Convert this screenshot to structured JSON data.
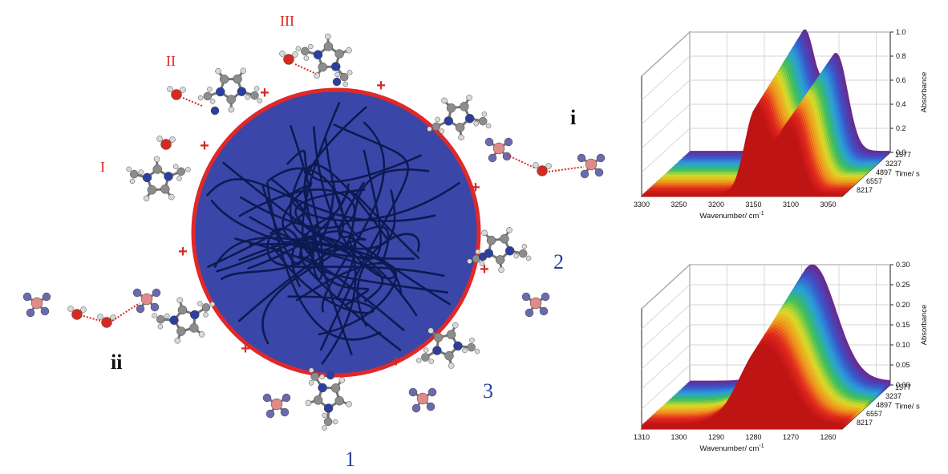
{
  "diagram": {
    "site_labels_red": [
      "I",
      "II",
      "III"
    ],
    "site_labels_black": [
      "i",
      "ii"
    ],
    "site_labels_blue": [
      "1",
      "2",
      "3"
    ],
    "charge_symbol": "+",
    "colors": {
      "sphere_fill": "#3a47a8",
      "sphere_border": "#e0282a",
      "fibers": "#0d1a52",
      "carbon": "#8c8c8c",
      "nitrogen": "#2d3f9e",
      "hydrogen": "#d8d8d8",
      "oxygen": "#d42a22",
      "boron": "#e08a8a",
      "fluorine": "#6a6ab0"
    }
  },
  "chart_data": [
    {
      "type": "area",
      "xlabel": "Wavenumber/ cm",
      "xlabel_superscript": "-1",
      "ylabel": "Absorbance",
      "zlabel": "Time/ s",
      "x_ticks": [
        "3300",
        "3250",
        "3200",
        "3150",
        "3100",
        "3050"
      ],
      "y_ticks": [
        "0.0",
        "0.2",
        "0.4",
        "0.6",
        "0.8",
        "1.0"
      ],
      "z_ticks": [
        "1577",
        "3237",
        "4897",
        "6557",
        "8217"
      ],
      "xlim": [
        3300,
        3020
      ],
      "ylim": [
        0,
        1.0
      ],
      "peaks": [
        {
          "center": 3140,
          "width": 22,
          "height_front": 0.72,
          "height_back": 1.0
        },
        {
          "center": 3095,
          "width": 22,
          "height_front": 0.58,
          "height_back": 0.8
        }
      ]
    },
    {
      "type": "area",
      "xlabel": "Wavenumber/ cm",
      "xlabel_superscript": "-1",
      "ylabel": "Absorbance",
      "zlabel": "Time/ s",
      "x_ticks": [
        "1310",
        "1300",
        "1290",
        "1280",
        "1270",
        "1260"
      ],
      "y_ticks": [
        "0.00",
        "0.05",
        "0.10",
        "0.15",
        "0.20",
        "0.25",
        "0.30"
      ],
      "z_ticks": [
        "1577",
        "3237",
        "4897",
        "6557",
        "8217"
      ],
      "xlim": [
        1310,
        1256
      ],
      "ylim": [
        0,
        0.3
      ],
      "peaks": [
        {
          "center": 1277,
          "width": 9,
          "height_front": 0.2,
          "height_back": 0.29
        }
      ]
    }
  ]
}
